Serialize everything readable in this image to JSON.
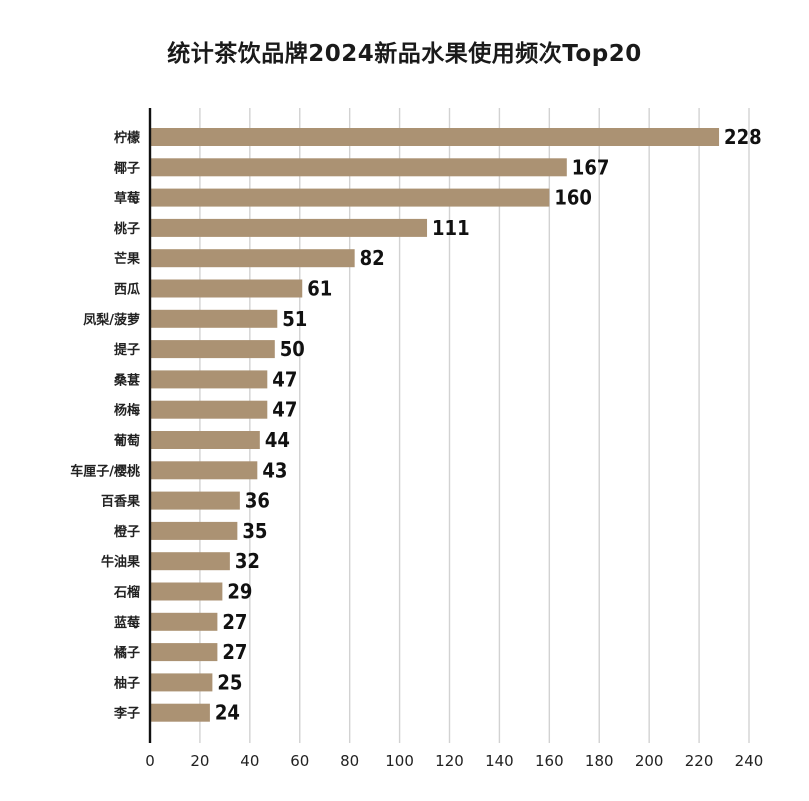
{
  "chart_data": {
    "type": "bar",
    "orientation": "horizontal",
    "title": "统计茶饮品牌2024新品水果使用频次Top20",
    "categories": [
      "柠檬",
      "椰子",
      "草莓",
      "桃子",
      "芒果",
      "西瓜",
      "凤梨/菠萝",
      "提子",
      "桑葚",
      "杨梅",
      "葡萄",
      "车厘子/樱桃",
      "百香果",
      "橙子",
      "牛油果",
      "石榴",
      "蓝莓",
      "橘子",
      "柚子",
      "李子"
    ],
    "values": [
      228,
      167,
      160,
      111,
      82,
      61,
      51,
      50,
      47,
      47,
      44,
      43,
      36,
      35,
      32,
      29,
      27,
      27,
      25,
      24
    ],
    "xlim": [
      0,
      240
    ],
    "xticks": [
      0,
      20,
      40,
      60,
      80,
      100,
      120,
      140,
      160,
      180,
      200,
      220,
      240
    ],
    "grid": true,
    "bar_color": "#ab9273",
    "grid_color": "#d2d2d2"
  }
}
